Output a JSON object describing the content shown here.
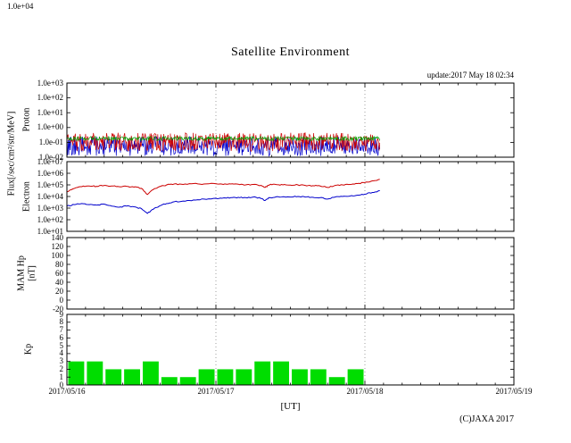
{
  "header": {
    "cropped_label": "1.0e+04",
    "title": "Satellite Environment",
    "update": "update:2017 May 18 02:34"
  },
  "axes": {
    "flux_label": "Flux[/sec/cm²/str/MeV]",
    "x_axis_label": "[UT]",
    "x_range_days": [
      0,
      3
    ],
    "grid": "vertical-dotted-at-day-ticks",
    "xticks": [
      {
        "label": "2017/05/16",
        "day": 0
      },
      {
        "label": "2017/05/17",
        "day": 1
      },
      {
        "label": "2017/05/18",
        "day": 2
      },
      {
        "label": "2017/05/19",
        "day": 3
      }
    ]
  },
  "footer": {
    "copyright": "(C)JAXA 2017"
  },
  "chart_data": [
    {
      "id": "proton",
      "type": "line",
      "panel_label": "Proton",
      "yscale": "log",
      "ylim": [
        0.01,
        1000
      ],
      "ytick_labels": [
        "1.0e+03",
        "1.0e+02",
        "1.0e+01",
        "1.0e+00",
        "1.0e-01",
        "1.0e-02"
      ],
      "ytick_values": [
        1000,
        100,
        10,
        1,
        0.1,
        0.01
      ],
      "series": [
        {
          "name": "proton-blue",
          "color": "#0000cc",
          "band": {
            "x0": 0,
            "x1": 2.1,
            "ymin": 0.012,
            "ymax": 0.25,
            "seed": 7
          }
        },
        {
          "name": "proton-red",
          "color": "#cc0000",
          "band": {
            "x0": 0,
            "x1": 2.1,
            "ymin": 0.025,
            "ymax": 0.45,
            "seed": 3
          }
        },
        {
          "name": "proton-green",
          "color": "#00a000",
          "band": {
            "x0": 0,
            "x1": 2.1,
            "ymin": 0.13,
            "ymax": 0.25,
            "seed": 5
          }
        }
      ]
    },
    {
      "id": "electron",
      "type": "line",
      "panel_label": "Electron",
      "yscale": "log",
      "ylim": [
        10,
        10000000
      ],
      "ytick_labels": [
        "1.0e+07",
        "1.0e+06",
        "1.0e+05",
        "1.0e+04",
        "1.0e+03",
        "1.0e+02",
        "1.0e+01"
      ],
      "ytick_values": [
        10000000,
        1000000,
        100000,
        10000,
        1000,
        100,
        10
      ],
      "series": [
        {
          "name": "electron-red",
          "color": "#cc0000",
          "x": [
            0,
            0.05,
            0.1,
            0.15,
            0.2,
            0.25,
            0.3,
            0.35,
            0.4,
            0.45,
            0.5,
            0.54,
            0.58,
            0.62,
            0.67,
            0.72,
            0.78,
            0.85,
            0.92,
            1.0,
            1.05,
            1.1,
            1.15,
            1.2,
            1.25,
            1.3,
            1.33,
            1.36,
            1.4,
            1.45,
            1.5,
            1.55,
            1.6,
            1.65,
            1.7,
            1.75,
            1.8,
            1.85,
            1.9,
            1.95,
            2.0,
            2.05,
            2.1
          ],
          "y": [
            25000,
            50000,
            70000,
            80000,
            75000,
            90000,
            80000,
            70000,
            75000,
            65000,
            50000,
            15000,
            40000,
            70000,
            100000,
            120000,
            110000,
            130000,
            120000,
            125000,
            110000,
            120000,
            115000,
            100000,
            110000,
            90000,
            60000,
            100000,
            110000,
            100000,
            95000,
            100000,
            90000,
            85000,
            80000,
            60000,
            90000,
            100000,
            110000,
            130000,
            160000,
            220000,
            300000
          ]
        },
        {
          "name": "electron-blue",
          "color": "#0000cc",
          "x": [
            0,
            0.05,
            0.1,
            0.15,
            0.2,
            0.25,
            0.3,
            0.35,
            0.4,
            0.45,
            0.5,
            0.54,
            0.58,
            0.62,
            0.67,
            0.72,
            0.78,
            0.85,
            0.92,
            1.0,
            1.05,
            1.1,
            1.15,
            1.2,
            1.25,
            1.3,
            1.33,
            1.36,
            1.4,
            1.45,
            1.5,
            1.55,
            1.6,
            1.65,
            1.7,
            1.75,
            1.8,
            1.85,
            1.9,
            1.95,
            2.0,
            2.05,
            2.1
          ],
          "y": [
            1500,
            2000,
            2500,
            2000,
            1800,
            2200,
            1500,
            1200,
            1500,
            1300,
            900,
            350,
            800,
            1500,
            2500,
            3500,
            4000,
            5000,
            6000,
            7000,
            7500,
            8000,
            8500,
            8000,
            9000,
            7000,
            4500,
            8000,
            9000,
            9500,
            9000,
            10000,
            9000,
            8500,
            8000,
            6000,
            9000,
            10000,
            11000,
            13000,
            16000,
            22000,
            32000
          ]
        }
      ]
    },
    {
      "id": "mam-hp",
      "type": "line",
      "panel_label": "MAM Hp",
      "panel_label2": "[nT]",
      "yscale": "linear",
      "ylim": [
        -20,
        140
      ],
      "ytick_labels": [
        "140",
        "120",
        "100",
        "80",
        "60",
        "40",
        "20",
        "0",
        "-20"
      ],
      "ytick_values": [
        140,
        120,
        100,
        80,
        60,
        40,
        20,
        0,
        -20
      ],
      "series": []
    },
    {
      "id": "kp",
      "type": "bar",
      "panel_label": "Kp",
      "yscale": "linear",
      "ylim": [
        0,
        9
      ],
      "ytick_labels": [
        "9",
        "8",
        "7",
        "6",
        "5",
        "4",
        "3",
        "2",
        "1",
        "0"
      ],
      "ytick_values": [
        9,
        8,
        7,
        6,
        5,
        4,
        3,
        2,
        1,
        0
      ],
      "bar_color": "#00dd00",
      "bars": {
        "start_day": 0,
        "interval_days": 0.125,
        "values": [
          3,
          3,
          2,
          2,
          3,
          1,
          1,
          2,
          2,
          2,
          3,
          3,
          2,
          2,
          1,
          2
        ]
      }
    }
  ]
}
